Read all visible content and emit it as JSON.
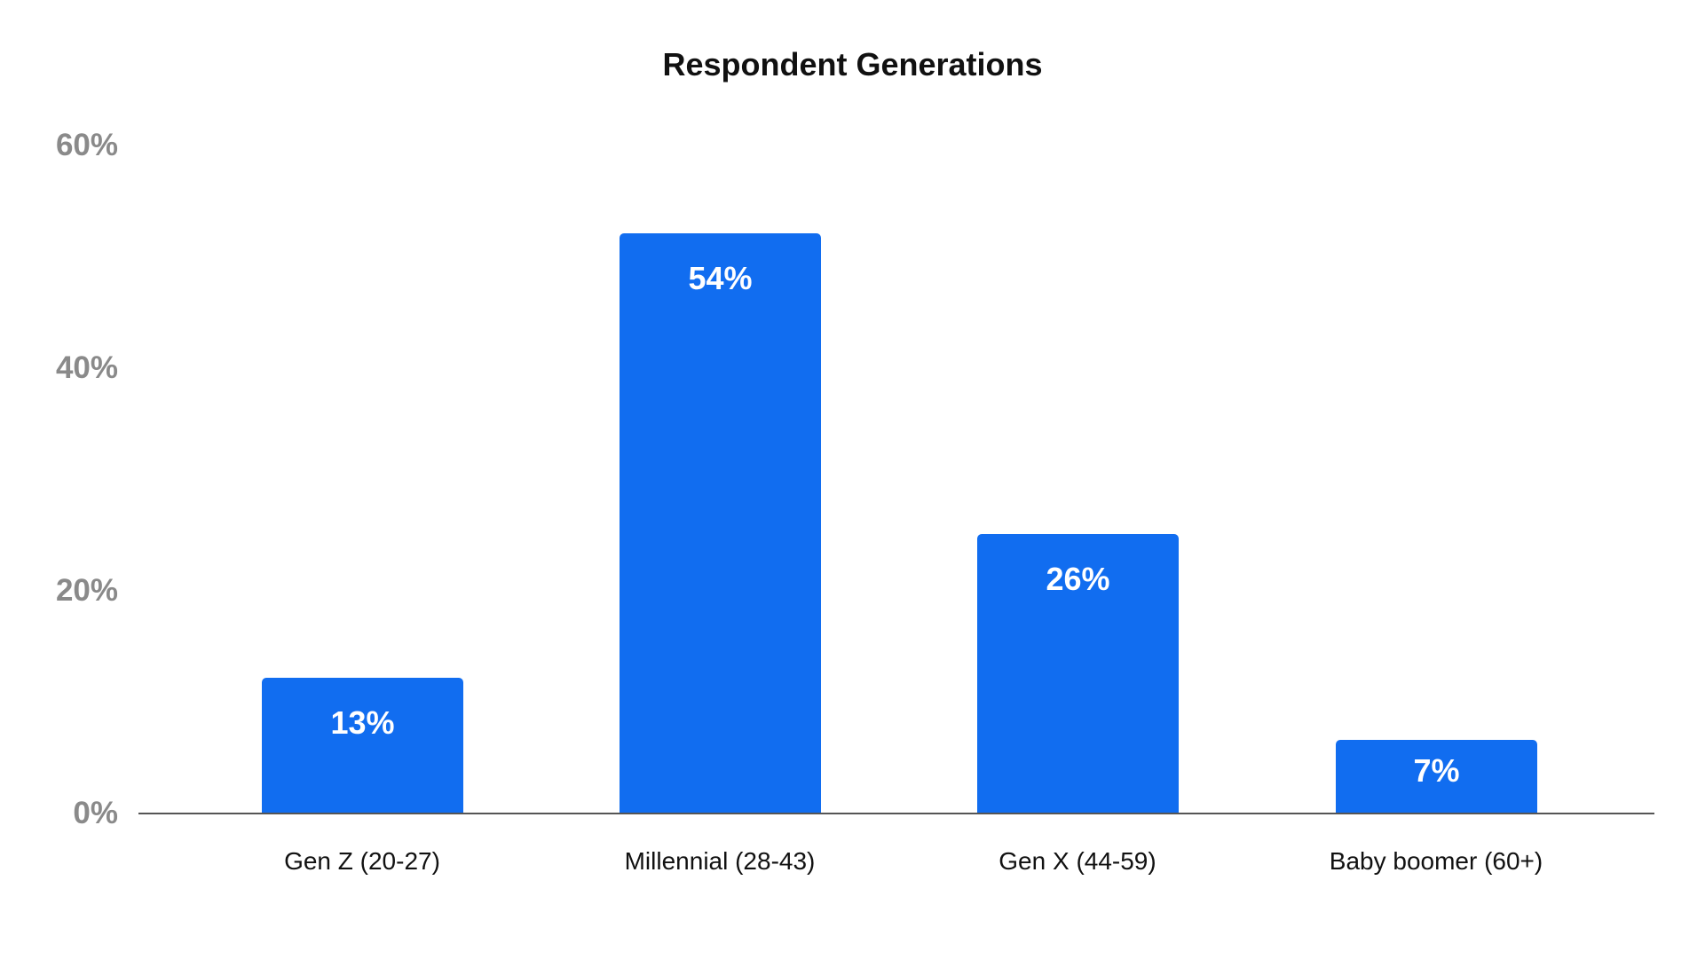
{
  "chart_data": {
    "type": "bar",
    "title": "Respondent Generations",
    "xlabel": "",
    "ylabel": "",
    "categories": [
      "Gen Z (20-27)",
      "Millennial (28-43)",
      "Gen X (44-59)",
      "Baby boomer (60+)"
    ],
    "values": [
      13,
      54,
      26,
      7
    ],
    "value_labels": [
      "13%",
      "54%",
      "26%",
      "7%"
    ],
    "ylim": [
      0,
      60
    ],
    "yticks": [
      "0%",
      "20%",
      "40%",
      "60%"
    ],
    "grid": false,
    "legend": "none",
    "bar_color": "#116DF0"
  },
  "yaxis": {
    "ticks": [
      "60%",
      "40%",
      "20%",
      "0%"
    ]
  }
}
